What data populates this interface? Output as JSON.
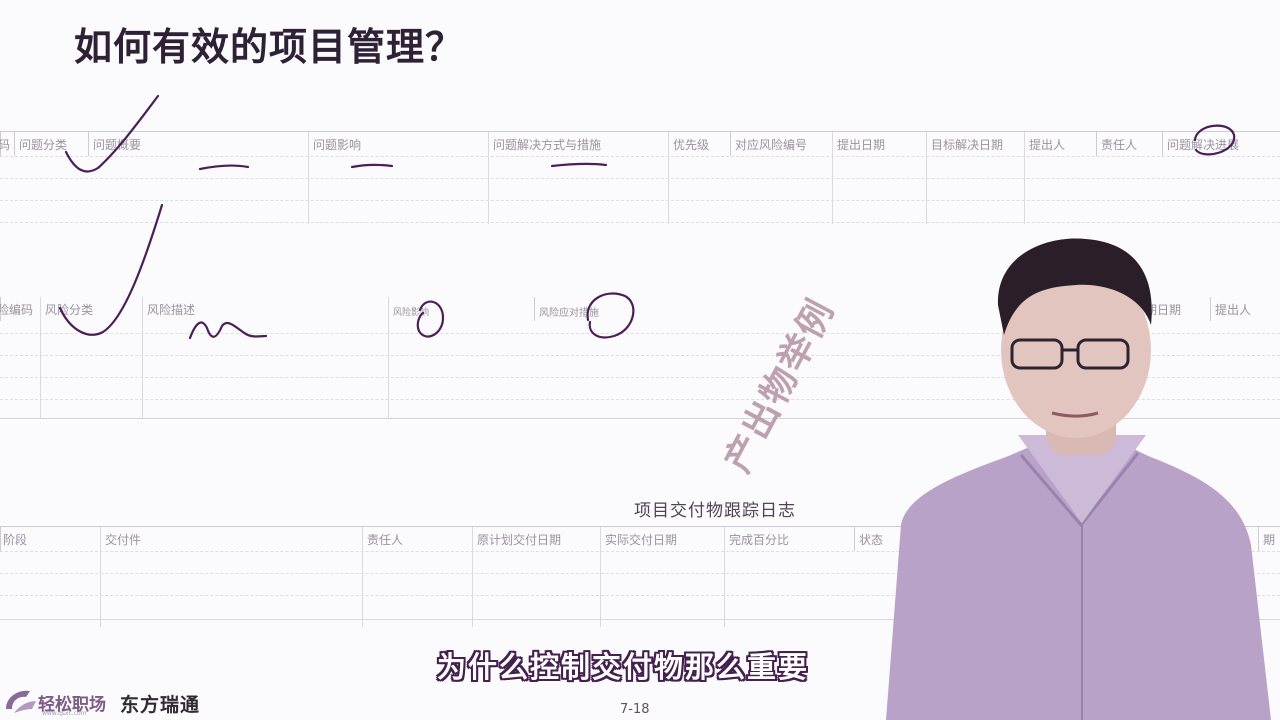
{
  "slide": {
    "title": "如何有效的项目管理？",
    "page_number": "7-18",
    "stamp_text": "产出物举例",
    "subtitle": "为什么控制交付物那么重要"
  },
  "issue_table": {
    "headers": [
      "码",
      "问题分类",
      "问题概要",
      "问题影响",
      "问题解决方式与措施",
      "优先级",
      "对应风险编号",
      "提出日期",
      "目标解决日期",
      "提出人",
      "责任人",
      "问题解决进展"
    ]
  },
  "risk_table": {
    "headers": [
      "险编码",
      "风险分类",
      "风险描述",
      "风险影响",
      "风险应对措施",
      "期日期",
      "提出人"
    ]
  },
  "deliverable_log": {
    "title": "项目交付物跟踪日志",
    "headers": [
      "阶段",
      "交付件",
      "责任人",
      "原计划交付日期",
      "实际交付日期",
      "完成百分比",
      "状态",
      "期"
    ]
  },
  "logos": {
    "brand1": "轻松职场",
    "brand1_sub": "www.qsxc.com",
    "brand2": "东方瑞通"
  },
  "colors": {
    "title": "#2e2136",
    "subtitle_outline": "#43204d",
    "stamp": "#b898a8",
    "ink": "#4a1f55",
    "shirt": "#b9a2c8"
  }
}
